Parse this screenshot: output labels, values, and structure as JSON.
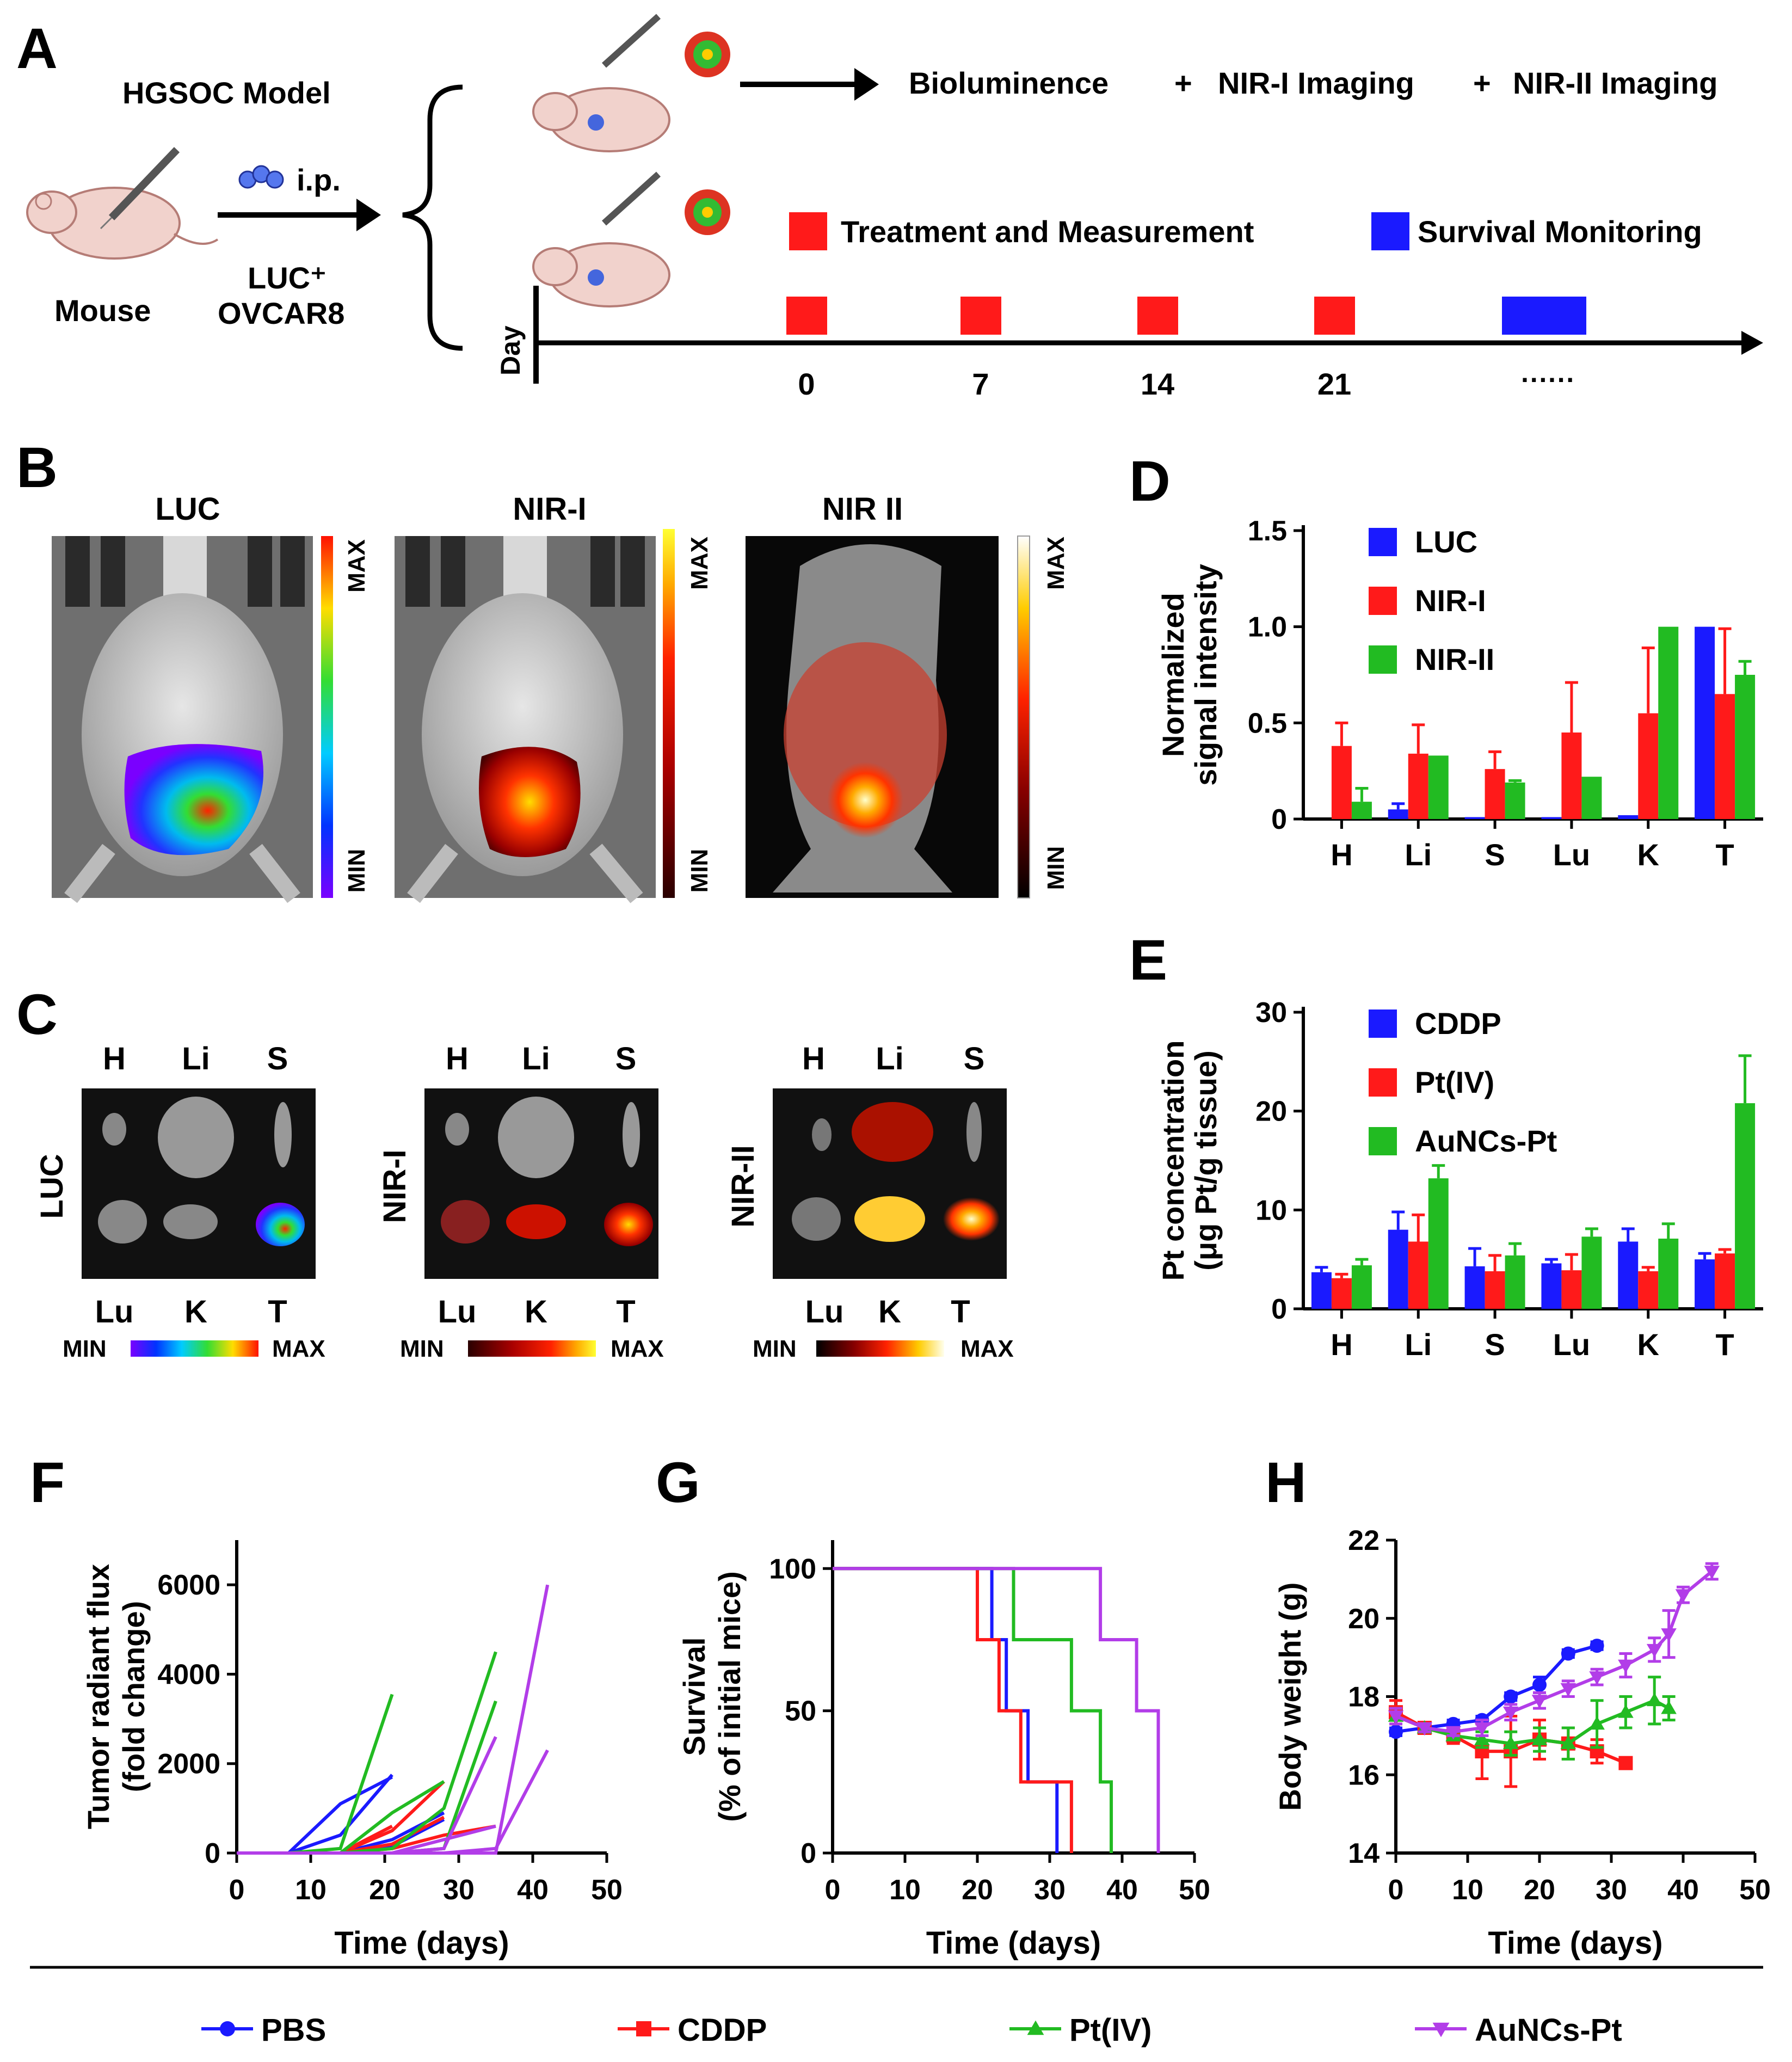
{
  "panel_letters": [
    "A",
    "B",
    "C",
    "D",
    "E",
    "F",
    "G",
    "H"
  ],
  "colors": {
    "blue": "#1a1aff",
    "red": "#ff1a1a",
    "green": "#22bb22",
    "purple": "#b23de8"
  },
  "panelA": {
    "model_label": "HGSOC Model",
    "mouse_label": "Mouse",
    "route_label": "i.p.",
    "cells_line1": "LUC⁺",
    "cells_line2": "OVCAR8",
    "imaging_1": "Bioluminence",
    "plus_1": "+",
    "imaging_2": "NIR-I Imaging",
    "plus_2": "+",
    "imaging_3": "NIR-II Imaging",
    "legend_treatment": "Treatment and Measurement",
    "legend_survival": "Survival Monitoring",
    "axis_label": "Day",
    "days": [
      "0",
      "7",
      "14",
      "21",
      "······"
    ]
  },
  "panelB": {
    "titles": [
      "LUC",
      "NIR-I",
      "NIR II"
    ],
    "max_label": "MAX",
    "min_label": "MIN"
  },
  "panelC": {
    "row_labels": [
      "LUC",
      "NIR-I",
      "NIR-II"
    ],
    "top_organs": [
      "H",
      "Li",
      "S"
    ],
    "bottom_organs": [
      "Lu",
      "K",
      "T"
    ],
    "min_label": "MIN",
    "max_label": "MAX"
  },
  "chart_data": [
    {
      "id": "D",
      "type": "bar",
      "ylabel_line1": "Normalized",
      "ylabel_line2": "signal intensity",
      "categories": [
        "H",
        "Li",
        "S",
        "Lu",
        "K",
        "T"
      ],
      "ylim": [
        0,
        1.5
      ],
      "yticks": [
        "0",
        "0.5",
        "1.0",
        "1.5"
      ],
      "ytick_values": [
        0,
        0.5,
        1.0,
        1.5
      ],
      "series": [
        {
          "name": "LUC",
          "color": "#1a1aff",
          "values": [
            0.0,
            0.05,
            0.01,
            0.01,
            0.02,
            1.0
          ],
          "errors": [
            0,
            0.03,
            0,
            0,
            0,
            0
          ]
        },
        {
          "name": "NIR-I",
          "color": "#ff1a1a",
          "values": [
            0.38,
            0.34,
            0.26,
            0.45,
            0.55,
            0.65
          ],
          "errors": [
            0.12,
            0.15,
            0.09,
            0.26,
            0.34,
            0.34
          ]
        },
        {
          "name": "NIR-II",
          "color": "#22bb22",
          "values": [
            0.09,
            0.33,
            0.19,
            0.22,
            1.0,
            0.75
          ],
          "errors": [
            0.07,
            0,
            0.01,
            0,
            0,
            0.07
          ]
        }
      ]
    },
    {
      "id": "E",
      "type": "bar",
      "ylabel_line1": "Pt concentration",
      "ylabel_line2": "(μg Pt/g tissue)",
      "categories": [
        "H",
        "Li",
        "S",
        "Lu",
        "K",
        "T"
      ],
      "ylim": [
        0,
        30
      ],
      "yticks": [
        "0",
        "10",
        "20",
        "30"
      ],
      "ytick_values": [
        0,
        10,
        20,
        30
      ],
      "series": [
        {
          "name": "CDDP",
          "color": "#1a1aff",
          "values": [
            3.7,
            8.0,
            4.3,
            4.6,
            6.8,
            5.0
          ],
          "errors": [
            0.5,
            1.8,
            1.8,
            0.4,
            1.3,
            0.6
          ]
        },
        {
          "name": "Pt(IV)",
          "color": "#ff1a1a",
          "values": [
            3.1,
            6.8,
            3.8,
            3.9,
            3.8,
            5.6
          ],
          "errors": [
            0.4,
            2.7,
            1.6,
            1.6,
            0.4,
            0.4
          ]
        },
        {
          "name": "AuNCs-Pt",
          "color": "#22bb22",
          "values": [
            4.4,
            13.2,
            5.4,
            7.3,
            7.1,
            20.8
          ],
          "errors": [
            0.6,
            1.3,
            1.2,
            0.8,
            1.5,
            4.8
          ]
        }
      ]
    },
    {
      "id": "F",
      "type": "line",
      "ylabel_line1": "Tumor radiant flux",
      "ylabel_line2": "(fold change)",
      "xlabel": "Time (days)",
      "xlim": [
        0,
        50
      ],
      "ylim": [
        0,
        7000
      ],
      "xticks": [
        "0",
        "10",
        "20",
        "30",
        "40",
        "50"
      ],
      "xtick_values": [
        0,
        10,
        20,
        30,
        40,
        50
      ],
      "yticks": [
        "0",
        "2000",
        "4000",
        "6000"
      ],
      "ytick_values": [
        0,
        2000,
        4000,
        6000
      ],
      "lines": [
        {
          "group": "PBS",
          "color": "#1a1aff",
          "x": [
            0,
            7,
            14,
            21
          ],
          "y": [
            0,
            0,
            1100,
            1700
          ]
        },
        {
          "group": "PBS",
          "color": "#1a1aff",
          "x": [
            0,
            7,
            14,
            21
          ],
          "y": [
            0,
            0,
            400,
            1750
          ]
        },
        {
          "group": "PBS",
          "color": "#1a1aff",
          "x": [
            0,
            7,
            14,
            21,
            28
          ],
          "y": [
            0,
            0,
            0,
            300,
            900
          ]
        },
        {
          "group": "PBS",
          "color": "#1a1aff",
          "x": [
            0,
            7,
            14,
            21,
            28
          ],
          "y": [
            0,
            0,
            0,
            150,
            750
          ]
        },
        {
          "group": "CDDP",
          "color": "#ff1a1a",
          "x": [
            0,
            7,
            14,
            21
          ],
          "y": [
            0,
            0,
            0,
            600
          ]
        },
        {
          "group": "CDDP",
          "color": "#ff1a1a",
          "x": [
            0,
            7,
            14,
            21,
            28
          ],
          "y": [
            0,
            0,
            0,
            200,
            800
          ]
        },
        {
          "group": "CDDP",
          "color": "#ff1a1a",
          "x": [
            0,
            7,
            14,
            21,
            28
          ],
          "y": [
            0,
            0,
            0,
            500,
            1600
          ]
        },
        {
          "group": "CDDP",
          "color": "#ff1a1a",
          "x": [
            0,
            7,
            14,
            21,
            28,
            35
          ],
          "y": [
            0,
            0,
            0,
            100,
            400,
            600
          ]
        },
        {
          "group": "Pt(IV)",
          "color": "#22bb22",
          "x": [
            0,
            7,
            14,
            21
          ],
          "y": [
            0,
            0,
            100,
            3550
          ]
        },
        {
          "group": "Pt(IV)",
          "color": "#22bb22",
          "x": [
            0,
            7,
            14,
            21,
            28
          ],
          "y": [
            0,
            0,
            0,
            900,
            1600
          ]
        },
        {
          "group": "Pt(IV)",
          "color": "#22bb22",
          "x": [
            0,
            7,
            14,
            21,
            28,
            35
          ],
          "y": [
            0,
            0,
            0,
            100,
            1000,
            4500
          ]
        },
        {
          "group": "Pt(IV)",
          "color": "#22bb22",
          "x": [
            0,
            7,
            14,
            21,
            28,
            35
          ],
          "y": [
            0,
            0,
            0,
            0,
            100,
            3400
          ]
        },
        {
          "group": "AuNCs-Pt",
          "color": "#b23de8",
          "x": [
            0,
            7,
            14,
            21,
            28,
            35
          ],
          "y": [
            0,
            0,
            0,
            0,
            100,
            2600
          ]
        },
        {
          "group": "AuNCs-Pt",
          "color": "#b23de8",
          "x": [
            0,
            7,
            14,
            21,
            28,
            35
          ],
          "y": [
            0,
            0,
            0,
            0,
            300,
            600
          ]
        },
        {
          "group": "AuNCs-Pt",
          "color": "#b23de8",
          "x": [
            0,
            7,
            14,
            21,
            28,
            35,
            42
          ],
          "y": [
            0,
            0,
            0,
            0,
            0,
            0,
            6000
          ]
        },
        {
          "group": "AuNCs-Pt",
          "color": "#b23de8",
          "x": [
            0,
            7,
            14,
            21,
            28,
            35,
            42
          ],
          "y": [
            0,
            0,
            0,
            0,
            0,
            100,
            2300
          ]
        }
      ]
    },
    {
      "id": "G",
      "type": "line",
      "ylabel_line1": "Survival",
      "ylabel_line2": "(% of initial mice)",
      "xlabel": "Time (days)",
      "xlim": [
        0,
        50
      ],
      "ylim": [
        0,
        110
      ],
      "xticks": [
        "0",
        "10",
        "20",
        "30",
        "40",
        "50"
      ],
      "xtick_values": [
        0,
        10,
        20,
        30,
        40,
        50
      ],
      "yticks": [
        "0",
        "50",
        "100"
      ],
      "ytick_values": [
        0,
        50,
        100
      ],
      "series": [
        {
          "name": "PBS",
          "color": "#1a1aff",
          "times": [
            0,
            22,
            24,
            27,
            31
          ],
          "values": [
            100,
            75,
            50,
            25,
            0
          ]
        },
        {
          "name": "CDDP",
          "color": "#ff1a1a",
          "times": [
            0,
            20,
            23,
            26,
            33
          ],
          "values": [
            100,
            75,
            50,
            25,
            0
          ]
        },
        {
          "name": "Pt(IV)",
          "color": "#22bb22",
          "times": [
            0,
            25,
            33,
            37,
            38.5
          ],
          "values": [
            100,
            75,
            50,
            25,
            0
          ]
        },
        {
          "name": "AuNCs-Pt",
          "color": "#b23de8",
          "times": [
            0,
            37,
            42,
            45
          ],
          "values": [
            100,
            75,
            50,
            0
          ]
        }
      ]
    },
    {
      "id": "H",
      "type": "line",
      "ylabel": "Body weight (g)",
      "xlabel": "Time (days)",
      "xlim": [
        0,
        50
      ],
      "ylim": [
        14,
        22
      ],
      "xticks": [
        "0",
        "10",
        "20",
        "30",
        "40",
        "50"
      ],
      "xtick_values": [
        0,
        10,
        20,
        30,
        40,
        50
      ],
      "yticks": [
        "14",
        "16",
        "18",
        "20",
        "22"
      ],
      "ytick_values": [
        14,
        16,
        18,
        20,
        22
      ],
      "series": [
        {
          "name": "PBS",
          "color": "#1a1aff",
          "marker": "circle",
          "x": [
            0,
            4,
            8,
            12,
            16,
            20,
            24,
            28
          ],
          "y": [
            17.1,
            17.2,
            17.3,
            17.4,
            18.0,
            18.3,
            19.1,
            19.3
          ],
          "err": [
            0.1,
            0.1,
            0.1,
            0.1,
            0.1,
            0.2,
            0.1,
            0.1
          ]
        },
        {
          "name": "CDDP",
          "color": "#ff1a1a",
          "marker": "square",
          "x": [
            0,
            4,
            8,
            12,
            16,
            20,
            24,
            28,
            32
          ],
          "y": [
            17.6,
            17.2,
            17.0,
            16.6,
            16.6,
            16.9,
            16.8,
            16.6,
            16.3
          ],
          "err": [
            0.3,
            0.1,
            0.2,
            0.7,
            0.9,
            0.5,
            0.4,
            0.3,
            0.1
          ]
        },
        {
          "name": "Pt(IV)",
          "color": "#22bb22",
          "marker": "triangle",
          "x": [
            0,
            4,
            8,
            12,
            16,
            20,
            24,
            28,
            32,
            36,
            38
          ],
          "y": [
            17.5,
            17.2,
            17.0,
            16.9,
            16.8,
            16.9,
            16.8,
            17.3,
            17.6,
            17.9,
            17.7
          ],
          "err": [
            0.2,
            0.1,
            0.1,
            0.2,
            0.3,
            0.3,
            0.4,
            0.6,
            0.4,
            0.6,
            0.3
          ]
        },
        {
          "name": "AuNCs-Pt",
          "color": "#b23de8",
          "marker": "triangle-down",
          "x": [
            0,
            4,
            8,
            12,
            16,
            20,
            24,
            28,
            32,
            36,
            38,
            40,
            44
          ],
          "y": [
            17.5,
            17.2,
            17.1,
            17.2,
            17.6,
            17.9,
            18.2,
            18.5,
            18.8,
            19.2,
            19.6,
            20.6,
            21.2
          ],
          "err": [
            0.2,
            0.1,
            0.1,
            0.2,
            0.2,
            0.2,
            0.2,
            0.2,
            0.3,
            0.3,
            0.6,
            0.2,
            0.2
          ]
        }
      ]
    }
  ],
  "bottom_legend": [
    {
      "name": "PBS",
      "color": "#1a1aff",
      "marker": "circle"
    },
    {
      "name": "CDDP",
      "color": "#ff1a1a",
      "marker": "square"
    },
    {
      "name": "Pt(IV)",
      "color": "#22bb22",
      "marker": "triangle"
    },
    {
      "name": "AuNCs-Pt",
      "color": "#b23de8",
      "marker": "triangle-down"
    }
  ]
}
